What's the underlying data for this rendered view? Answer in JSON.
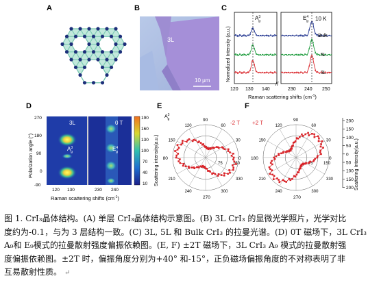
{
  "panels": {
    "A": {
      "letter": "A"
    },
    "B": {
      "letter": "B",
      "layer_label": "3L",
      "scale_label": "10 μm"
    },
    "C": {
      "letter": "C",
      "temperature": "10 K",
      "ylabel": "Normalized Intensity (a.u.)",
      "xlabel": "Raman scattering shifts (cm",
      "xlabel_sup": "-1",
      "xlabel_end": ")",
      "xticks": [
        "120",
        "130",
        "140",
        "230",
        "240",
        "250"
      ],
      "peak1_main": "A",
      "peak1_sup": "3",
      "peak1_sub": "g",
      "peak2_main": "E",
      "peak2_sup": "4",
      "peak2_sub": "g",
      "break_mark": "//"
    },
    "D": {
      "letter": "D",
      "ylabel": "Polarization angle (°)",
      "xlabel": "Raman scattering shifts (cm",
      "xlabel_sup": "-1",
      "xlabel_end": ")",
      "yticks": [
        "270",
        "180",
        "90",
        "0",
        "-90"
      ],
      "xticks": [
        "120",
        "130",
        "230",
        "240"
      ],
      "label_3L": "3L",
      "label_field": "0 T",
      "peak1_main": "A",
      "peak1_sup": "3",
      "peak1_sub": "g",
      "peak2_main": "E",
      "peak2_sup": "4",
      "peak2_sub": "g",
      "colorbar_ticks": [
        "190",
        "160",
        "130",
        "100",
        "70",
        "40",
        "10"
      ],
      "colorbar_label": "Scattering intensity(a.u.)"
    },
    "E": {
      "letter": "E",
      "field": "-2 T",
      "peak_main": "A",
      "peak_sup": "3",
      "peak_sub": "g",
      "angle_labels": [
        "90",
        "0",
        "270",
        "180"
      ],
      "diag_labels": [
        "120",
        "60",
        "240",
        "300",
        "150",
        "30",
        "210",
        "330"
      ],
      "radial_ticks": [
        "75",
        "150"
      ]
    },
    "F": {
      "letter": "F",
      "field": "+2 T",
      "angle_labels": [
        "90",
        "0",
        "270",
        "180"
      ],
      "diag_labels": [
        "120",
        "60",
        "240",
        "300",
        "150",
        "30",
        "210",
        "330"
      ],
      "radial_ticks": [
        "75",
        "150"
      ],
      "right_axis_label": "Scattering Intensity(a.u.)",
      "right_axis_ticks": [
        "200",
        "150",
        "100",
        "50",
        "0",
        "50",
        "100",
        "150",
        "200"
      ]
    }
  },
  "chart_data": [
    {
      "panel": "C",
      "type": "line",
      "xlabel": "Raman scattering shifts (cm-1)",
      "ylabel": "Normalized Intensity (a.u.)",
      "x_segments": [
        [
          120,
          150
        ],
        [
          227,
          250
        ]
      ],
      "peaks": [
        {
          "name": "A3g",
          "x": 128
        },
        {
          "name": "E4g",
          "x": 237
        }
      ],
      "series": [
        {
          "name": "Bulk",
          "color": "#1b2f8c",
          "peak_height": [
            0.45,
            0.75
          ]
        },
        {
          "name": "5L",
          "color": "#1a9a3a",
          "peak_height": [
            0.6,
            0.8
          ]
        },
        {
          "name": "3L",
          "color": "#d9252a",
          "peak_height": [
            0.75,
            0.9
          ]
        }
      ]
    },
    {
      "panel": "D",
      "type": "heatmap",
      "x_segments": [
        [
          120,
          135
        ],
        [
          228,
          245
        ]
      ],
      "y_range": [
        -90,
        270
      ],
      "hotspots": [
        {
          "x": 128,
          "y": 0
        },
        {
          "x": 128,
          "y": 180
        },
        {
          "x": 238,
          "y": 45
        },
        {
          "x": 238,
          "y": 135
        },
        {
          "x": 238,
          "y": 225
        }
      ],
      "colorbar_range": [
        10,
        190
      ]
    },
    {
      "panel": "E",
      "type": "scatter",
      "shape": "polar",
      "major_axis_deg": -15,
      "r_max": 150,
      "color": "#d9252a"
    },
    {
      "panel": "F",
      "type": "scatter",
      "shape": "polar",
      "major_axis_deg": 40,
      "r_max": 150,
      "color": "#d9252a"
    }
  ],
  "caption": {
    "line1": "图 1. CrI₃晶体结构。(A) 单层  CrI₃晶体结构示意图。(B) 3L CrI₃ 的显微光学照片，光学对比",
    "line2": "度约为-0.1，与为 3 层结构一致。(C) 3L, 5L 和 Bulk CrI₃ 的拉曼光谱。(D) 0T 磁场下，3L CrI₃",
    "line3": "A₉和 E₉模式的拉曼散射强度偏振依赖图。(E, F) ±2T 磁场下，3L CrI₃ A₉ 模式的拉曼散射强",
    "line4": "度偏振依赖图。±2T 时，偏振角度分别为+40° 和-15°，正负磁场偏振角度的不对称表明了非",
    "line5": "互易散射性质。",
    "return_mark": "↵"
  }
}
